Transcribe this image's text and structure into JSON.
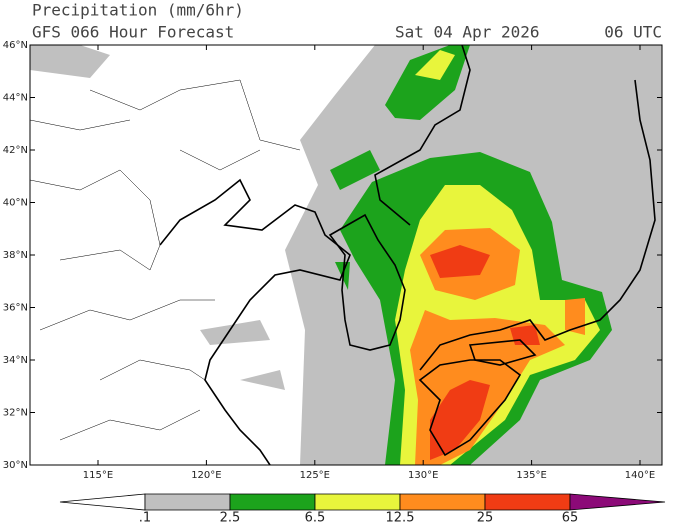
{
  "header": {
    "title": "Precipitation (mm/6hr)",
    "subtitle": "GFS 066 Hour Forecast",
    "date": "Sat 04 Apr 2026",
    "time": "06 UTC"
  },
  "map": {
    "lat_labels": [
      "46°N",
      "44°N",
      "42°N",
      "40°N",
      "38°N",
      "36°N",
      "34°N",
      "32°N",
      "30°N"
    ],
    "lon_labels": [
      "115°E",
      "120°E",
      "125°E",
      "130°E",
      "135°E",
      "140°E"
    ]
  },
  "legend": {
    "labels": [
      ".1",
      "2.5",
      "6.5",
      "12.5",
      "25",
      "65"
    ],
    "colors": [
      "#ffffff",
      "#c0c0c0",
      "#1ca31c",
      "#e8f53c",
      "#ff8c1e",
      "#f03c14",
      "#8c0a78"
    ]
  }
}
